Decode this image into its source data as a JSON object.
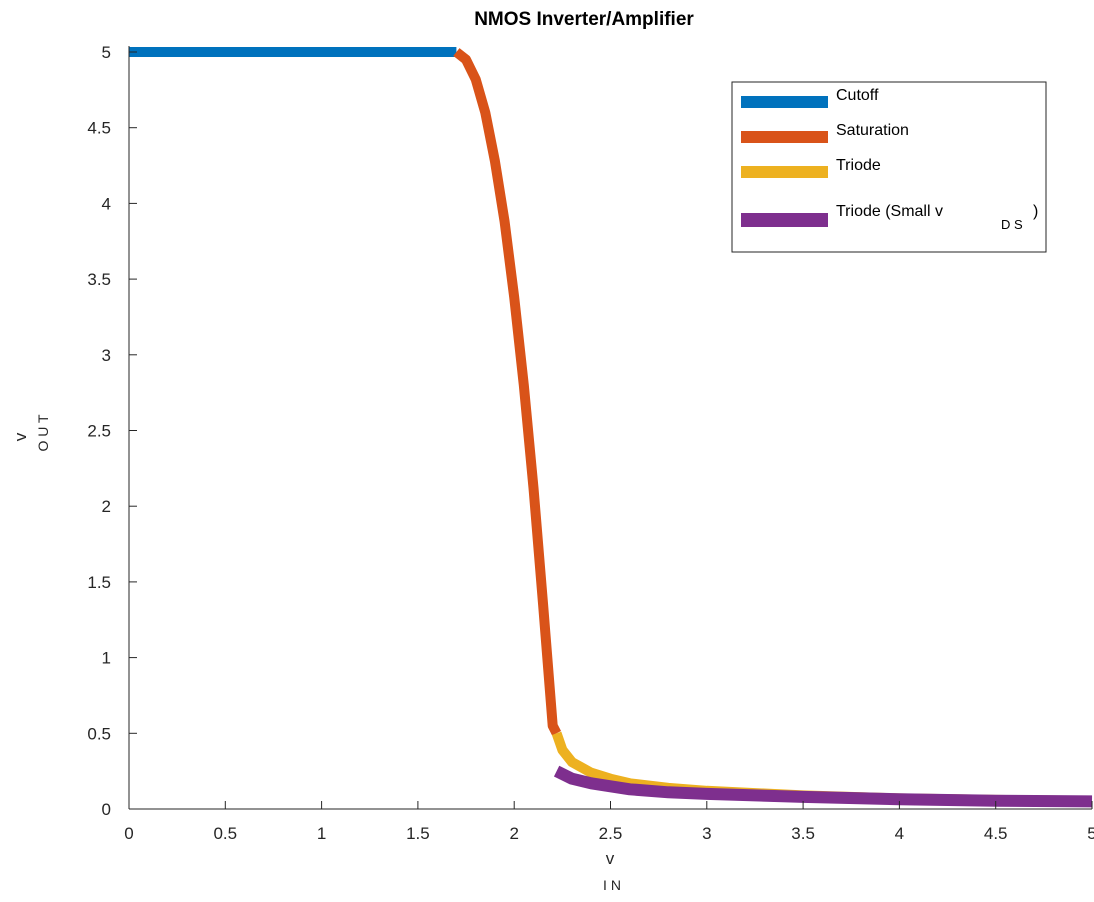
{
  "chart_data": {
    "type": "line",
    "title": "NMOS Inverter/Amplifier",
    "xlabel": {
      "main": "v",
      "sub": "I N"
    },
    "ylabel": {
      "main": "v",
      "sub": "O U T"
    },
    "xlim": [
      0,
      5
    ],
    "ylim": [
      0,
      5
    ],
    "x_ticks": [
      0,
      0.5,
      1,
      1.5,
      2,
      2.5,
      3,
      3.5,
      4,
      4.5,
      5
    ],
    "x_tick_labels": [
      "0",
      "0.5",
      "1",
      "1.5",
      "2",
      "2.5",
      "3",
      "3.5",
      "4",
      "4.5",
      "5"
    ],
    "y_ticks": [
      0,
      0.5,
      1,
      1.5,
      2,
      2.5,
      3,
      3.5,
      4,
      4.5,
      5
    ],
    "y_tick_labels": [
      "0",
      "0.5",
      "1",
      "1.5",
      "2",
      "2.5",
      "3",
      "3.5",
      "4",
      "4.5",
      "5"
    ],
    "grid": false,
    "legend_position": "top-right",
    "series": [
      {
        "name": "Cutoff",
        "color": "#0072BD",
        "x": [
          0,
          0.5,
          1,
          1.5,
          1.7
        ],
        "y": [
          5,
          5,
          5,
          5,
          5
        ]
      },
      {
        "name": "Saturation",
        "color": "#D95319",
        "x": [
          1.7,
          1.75,
          1.8,
          1.85,
          1.9,
          1.95,
          2.0,
          2.05,
          2.1,
          2.15,
          2.2,
          2.22
        ],
        "y": [
          5.0,
          4.95,
          4.82,
          4.6,
          4.28,
          3.88,
          3.38,
          2.8,
          2.12,
          1.35,
          0.55,
          0.5
        ]
      },
      {
        "name": "Triode",
        "color": "#EDB120",
        "x": [
          2.22,
          2.25,
          2.3,
          2.4,
          2.5,
          2.6,
          2.8,
          3.0,
          3.5,
          4.0,
          4.5,
          5.0
        ],
        "y": [
          0.5,
          0.39,
          0.31,
          0.24,
          0.2,
          0.17,
          0.14,
          0.12,
          0.09,
          0.07,
          0.06,
          0.055
        ]
      },
      {
        "name": "Triode (Small v",
        "name_sub": "D S",
        "name_suffix": ")",
        "color": "#7E2F8E",
        "x": [
          2.22,
          2.3,
          2.4,
          2.5,
          2.6,
          2.8,
          3.0,
          3.5,
          4.0,
          4.5,
          5.0
        ],
        "y": [
          0.25,
          0.2,
          0.17,
          0.15,
          0.13,
          0.11,
          0.1,
          0.08,
          0.065,
          0.055,
          0.05
        ]
      }
    ]
  }
}
